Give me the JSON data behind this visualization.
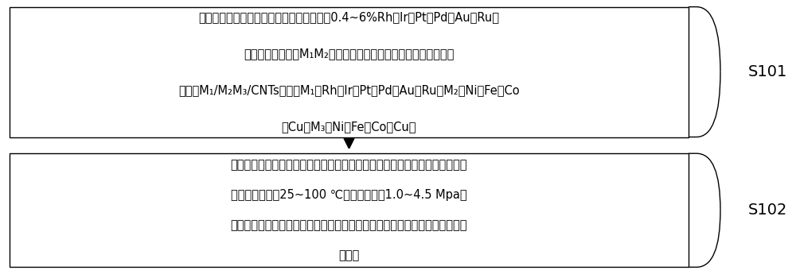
{
  "background_color": "#ffffff",
  "box_border_color": "#000000",
  "box_fill_color": "#ffffff",
  "arrow_color": "#000000",
  "step_label_color": "#000000",
  "box1_lines": [
    "以碳纳米管（活性炭或炭黑）为载体，制备0.4~6%Rh（Ir、Pt、Pd、Au或Ru）",
    "为纳米小岛负载于M₁M₂双金属纳米颗粒的三元金属负载型傅化剂",
    "（记作M₁/M₂M₃/CNTs，其中M₁＝Rh、Ir、Pt、Pd、Au或Ru；M₂＝Ni、Fe、Co",
    "或Cu；M₃＝Ni、Fe、Co或Cu）"
  ],
  "box2_lines": [
    "向高压反应釜中分别加入反应原料（如萒等多环芳烃化合物），傅化剂，将高",
    "压反应釜加热至25~100 ℃，反应压力为1.0~4.5 Mpa，",
    "并恒温反应一段时间，排出剩余气体，离心分离得产物，用气相色谱仪分析产",
    "物组成"
  ],
  "label1": "S101",
  "label2": "S102",
  "fig_width": 10.0,
  "fig_height": 3.45,
  "dpi": 100,
  "font_size_body": 10.5,
  "font_size_label": 14
}
